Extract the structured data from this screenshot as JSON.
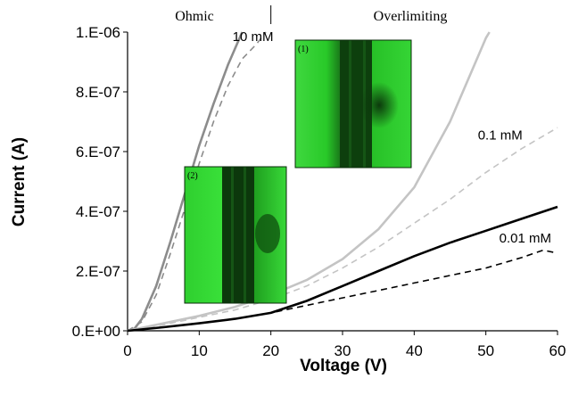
{
  "chart_data": {
    "type": "line",
    "xlabel": "Voltage (V)",
    "ylabel": "Current (A)",
    "xlim": [
      0,
      60
    ],
    "ylim": [
      0,
      1e-06
    ],
    "x_ticks": [
      "0",
      "10",
      "20",
      "30",
      "40",
      "50",
      "60"
    ],
    "y_ticks": [
      "0.E+00",
      "2.E-07",
      "4.E-07",
      "6.E-07",
      "8.E-07",
      "1.E-06"
    ],
    "grid": false,
    "regions": [
      {
        "label": "Ohmic",
        "x_range": [
          0,
          20
        ]
      },
      {
        "label": "Overlimiting",
        "x_range": [
          20,
          60
        ]
      }
    ],
    "region_divider_x": 20,
    "series_labels": [
      {
        "text": "10 mM",
        "at": [
          17.5,
          9.7e-07
        ]
      },
      {
        "text": "0.1 mM",
        "at": [
          52,
          6.4e-07
        ]
      },
      {
        "text": "0.01 mM",
        "at": [
          55.5,
          2.95e-07
        ]
      }
    ],
    "series": [
      {
        "label_ref": 0,
        "style": "solid",
        "color": "#8c8c8c",
        "points": [
          [
            0,
            0
          ],
          [
            1,
            8e-09
          ],
          [
            2,
            4e-08
          ],
          [
            4,
            1.5e-07
          ],
          [
            6,
            3e-07
          ],
          [
            8,
            4.6e-07
          ],
          [
            10,
            6.2e-07
          ],
          [
            12,
            7.6e-07
          ],
          [
            14,
            8.9e-07
          ],
          [
            16,
            1e-06
          ]
        ]
      },
      {
        "label_ref": 0,
        "style": "dashed",
        "color": "#8c8c8c",
        "points": [
          [
            0,
            0
          ],
          [
            2,
            3e-08
          ],
          [
            4,
            1.2e-07
          ],
          [
            6,
            2.6e-07
          ],
          [
            8,
            4.1e-07
          ],
          [
            10,
            5.6e-07
          ],
          [
            12,
            7e-07
          ],
          [
            14,
            8.2e-07
          ],
          [
            16,
            9.1e-07
          ],
          [
            18,
            9.6e-07
          ],
          [
            19.3,
            1e-06
          ]
        ]
      },
      {
        "label_ref": 1,
        "style": "solid",
        "color": "#c4c4c4",
        "points": [
          [
            0,
            0
          ],
          [
            5,
            2.5e-08
          ],
          [
            10,
            5e-08
          ],
          [
            15,
            8e-08
          ],
          [
            20,
            1.2e-07
          ],
          [
            25,
            1.7e-07
          ],
          [
            30,
            2.4e-07
          ],
          [
            35,
            3.4e-07
          ],
          [
            40,
            4.8e-07
          ],
          [
            45,
            7e-07
          ],
          [
            50,
            9.8e-07
          ],
          [
            50.5,
            1e-06
          ]
        ]
      },
      {
        "label_ref": 1,
        "style": "dashed",
        "color": "#c4c4c4",
        "points": [
          [
            0,
            0
          ],
          [
            5,
            2e-08
          ],
          [
            10,
            4.5e-08
          ],
          [
            15,
            7e-08
          ],
          [
            20,
            1.05e-07
          ],
          [
            25,
            1.5e-07
          ],
          [
            30,
            2.1e-07
          ],
          [
            35,
            2.8e-07
          ],
          [
            40,
            3.6e-07
          ],
          [
            45,
            4.4e-07
          ],
          [
            50,
            5.3e-07
          ],
          [
            55,
            6.1e-07
          ],
          [
            60,
            6.8e-07
          ]
        ]
      },
      {
        "label_ref": 2,
        "style": "solid",
        "color": "#000000",
        "points": [
          [
            0,
            0
          ],
          [
            5,
            1.2e-08
          ],
          [
            10,
            2.5e-08
          ],
          [
            15,
            4e-08
          ],
          [
            20,
            6e-08
          ],
          [
            25,
            1e-07
          ],
          [
            30,
            1.5e-07
          ],
          [
            35,
            2e-07
          ],
          [
            40,
            2.5e-07
          ],
          [
            45,
            2.95e-07
          ],
          [
            50,
            3.35e-07
          ],
          [
            55,
            3.75e-07
          ],
          [
            60,
            4.15e-07
          ]
        ]
      },
      {
        "label_ref": 2,
        "style": "dashed",
        "color": "#000000",
        "points": [
          [
            0,
            0
          ],
          [
            5,
            1.2e-08
          ],
          [
            10,
            2.5e-08
          ],
          [
            15,
            4e-08
          ],
          [
            20,
            6e-08
          ],
          [
            25,
            8.5e-08
          ],
          [
            30,
            1.1e-07
          ],
          [
            35,
            1.35e-07
          ],
          [
            40,
            1.6e-07
          ],
          [
            45,
            1.85e-07
          ],
          [
            50,
            2.1e-07
          ],
          [
            55,
            2.45e-07
          ],
          [
            58,
            2.7e-07
          ],
          [
            60,
            2.6e-07
          ]
        ]
      }
    ],
    "insets": [
      {
        "label": "(1)"
      },
      {
        "label": "(2)"
      }
    ]
  }
}
